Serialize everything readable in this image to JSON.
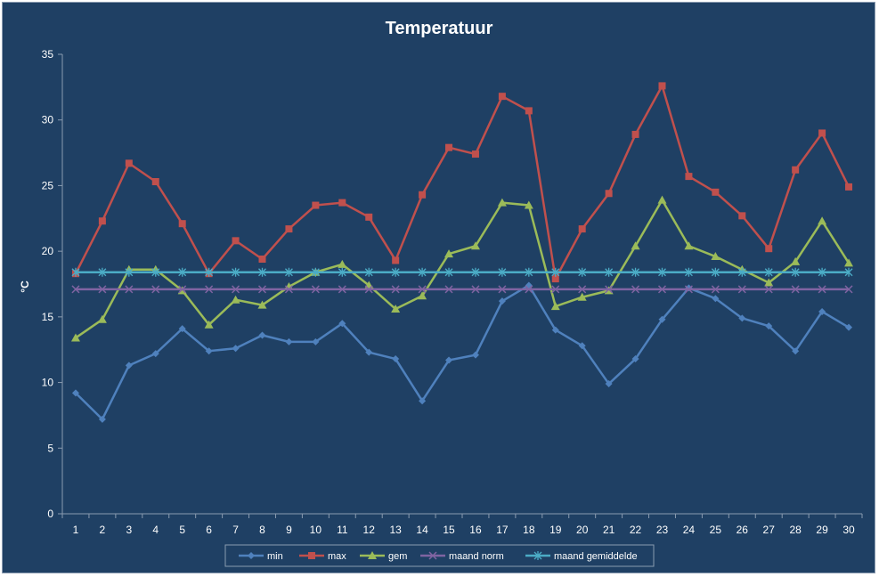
{
  "chart_data": {
    "type": "line",
    "title": "Temperatuur",
    "xlabel": "",
    "ylabel": "°C",
    "ylim": [
      0,
      35
    ],
    "yticks": [
      0,
      5,
      10,
      15,
      20,
      25,
      30,
      35
    ],
    "categories": [
      "1",
      "2",
      "3",
      "4",
      "5",
      "6",
      "7",
      "8",
      "9",
      "10",
      "11",
      "12",
      "13",
      "14",
      "15",
      "16",
      "17",
      "18",
      "19",
      "20",
      "21",
      "22",
      "23",
      "24",
      "25",
      "26",
      "27",
      "28",
      "29",
      "30"
    ],
    "grid": false,
    "legend": "bottom",
    "series": [
      {
        "name": "min",
        "color": "#4f81bd",
        "marker": "diamond",
        "values": [
          9.2,
          7.2,
          11.3,
          12.2,
          14.1,
          12.4,
          12.6,
          13.6,
          13.1,
          13.1,
          14.5,
          12.3,
          11.8,
          8.6,
          11.7,
          12.1,
          16.2,
          17.4,
          14.0,
          12.8,
          9.9,
          11.8,
          14.8,
          17.2,
          16.4,
          14.9,
          14.3,
          12.4,
          15.4,
          14.2
        ]
      },
      {
        "name": "max",
        "color": "#c0504d",
        "marker": "square",
        "values": [
          18.3,
          22.3,
          26.7,
          25.3,
          22.1,
          18.3,
          20.8,
          19.4,
          21.7,
          23.5,
          23.7,
          22.6,
          19.3,
          24.3,
          27.9,
          27.4,
          31.8,
          30.7,
          17.9,
          21.7,
          24.4,
          28.9,
          32.6,
          25.7,
          24.5,
          22.7,
          20.2,
          26.2,
          29.0,
          24.9
        ]
      },
      {
        "name": "gem",
        "color": "#9bbb59",
        "marker": "triangle",
        "values": [
          13.4,
          14.8,
          18.6,
          18.6,
          17.0,
          14.4,
          16.3,
          15.9,
          17.3,
          18.4,
          19.0,
          17.4,
          15.6,
          16.6,
          19.8,
          20.4,
          23.7,
          23.5,
          15.8,
          16.5,
          17.0,
          20.4,
          23.9,
          20.4,
          19.6,
          18.6,
          17.6,
          19.2,
          22.3,
          19.1
        ]
      },
      {
        "name": "maand norm",
        "color": "#8064a2",
        "marker": "x",
        "values": [
          17.1,
          17.1,
          17.1,
          17.1,
          17.1,
          17.1,
          17.1,
          17.1,
          17.1,
          17.1,
          17.1,
          17.1,
          17.1,
          17.1,
          17.1,
          17.1,
          17.1,
          17.1,
          17.1,
          17.1,
          17.1,
          17.1,
          17.1,
          17.1,
          17.1,
          17.1,
          17.1,
          17.1,
          17.1,
          17.1
        ]
      },
      {
        "name": "maand gemiddelde",
        "color": "#4bacc6",
        "marker": "star",
        "values": [
          18.4,
          18.4,
          18.4,
          18.4,
          18.4,
          18.4,
          18.4,
          18.4,
          18.4,
          18.4,
          18.4,
          18.4,
          18.4,
          18.4,
          18.4,
          18.4,
          18.4,
          18.4,
          18.4,
          18.4,
          18.4,
          18.4,
          18.4,
          18.4,
          18.4,
          18.4,
          18.4,
          18.4,
          18.4,
          18.4
        ]
      }
    ]
  }
}
